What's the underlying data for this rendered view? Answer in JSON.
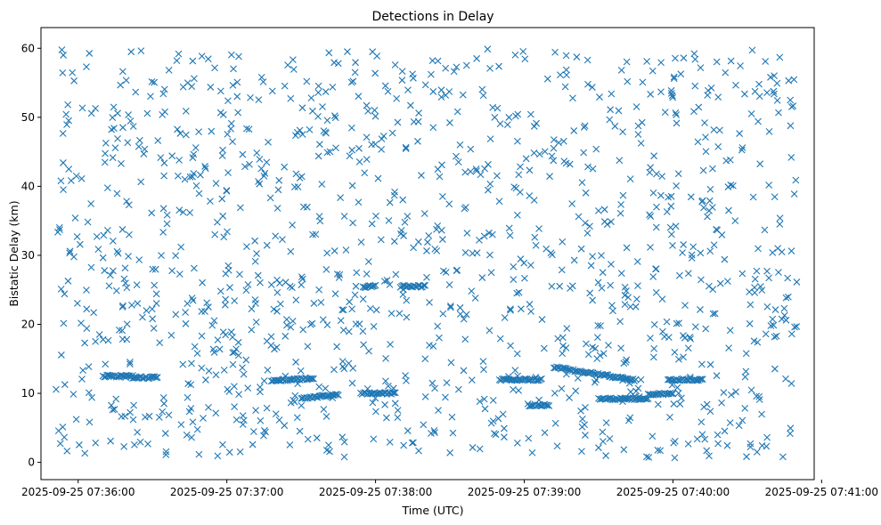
{
  "chart_data": {
    "type": "scatter",
    "title": "Detections in Delay",
    "xlabel": "Time (UTC)",
    "ylabel": "Bistatic Delay (km)",
    "x_unit": "time",
    "x_range": [
      "2025-09-25 07:35:45",
      "2025-09-25 07:40:57"
    ],
    "y_range": [
      -2.5,
      63
    ],
    "x_ticks": [
      "2025-09-25 07:36:00",
      "2025-09-25 07:37:00",
      "2025-09-25 07:38:00",
      "2025-09-25 07:39:00",
      "2025-09-25 07:40:00",
      "2025-09-25 07:41:00"
    ],
    "y_ticks": [
      0,
      10,
      20,
      30,
      40,
      50,
      60
    ],
    "grid": false,
    "marker": "x",
    "color": "#1f77b4",
    "clutter_seed": 20250925,
    "clutter_count": 1250,
    "clutter_time_range": [
      "2025-09-25 07:35:51",
      "2025-09-25 07:40:50"
    ],
    "clutter_delay_range": [
      0.5,
      60
    ],
    "tracks": [
      {
        "times": [
          "2025-09-25 07:36:10",
          "2025-09-25 07:36:22"
        ],
        "delays": [
          12.5,
          12.5
        ]
      },
      {
        "times": [
          "2025-09-25 07:36:22",
          "2025-09-25 07:36:32"
        ],
        "delays": [
          12.3,
          12.3
        ]
      },
      {
        "times": [
          "2025-09-25 07:37:18",
          "2025-09-25 07:37:35"
        ],
        "delays": [
          11.8,
          12.2
        ]
      },
      {
        "times": [
          "2025-09-25 07:37:30",
          "2025-09-25 07:37:45"
        ],
        "delays": [
          9.3,
          9.8
        ]
      },
      {
        "times": [
          "2025-09-25 07:37:54",
          "2025-09-25 07:38:08"
        ],
        "delays": [
          10.0,
          10.0
        ]
      },
      {
        "times": [
          "2025-09-25 07:38:10",
          "2025-09-25 07:38:20"
        ],
        "delays": [
          25.5,
          25.5
        ]
      },
      {
        "times": [
          "2025-09-25 07:37:55",
          "2025-09-25 07:38:00"
        ],
        "delays": [
          25.4,
          25.6
        ]
      },
      {
        "times": [
          "2025-09-25 07:38:50",
          "2025-09-25 07:39:07"
        ],
        "delays": [
          12.0,
          12.0
        ]
      },
      {
        "times": [
          "2025-09-25 07:39:02",
          "2025-09-25 07:39:10"
        ],
        "delays": [
          8.3,
          8.3
        ]
      },
      {
        "times": [
          "2025-09-25 07:39:12",
          "2025-09-25 07:39:45"
        ],
        "delays": [
          13.8,
          11.9
        ]
      },
      {
        "times": [
          "2025-09-25 07:39:30",
          "2025-09-25 07:39:50"
        ],
        "delays": [
          9.2,
          9.2
        ]
      },
      {
        "times": [
          "2025-09-25 07:39:50",
          "2025-09-25 07:40:00"
        ],
        "delays": [
          9.8,
          10.0
        ]
      },
      {
        "times": [
          "2025-09-25 07:39:58",
          "2025-09-25 07:40:12"
        ],
        "delays": [
          12.0,
          12.0
        ]
      }
    ]
  }
}
